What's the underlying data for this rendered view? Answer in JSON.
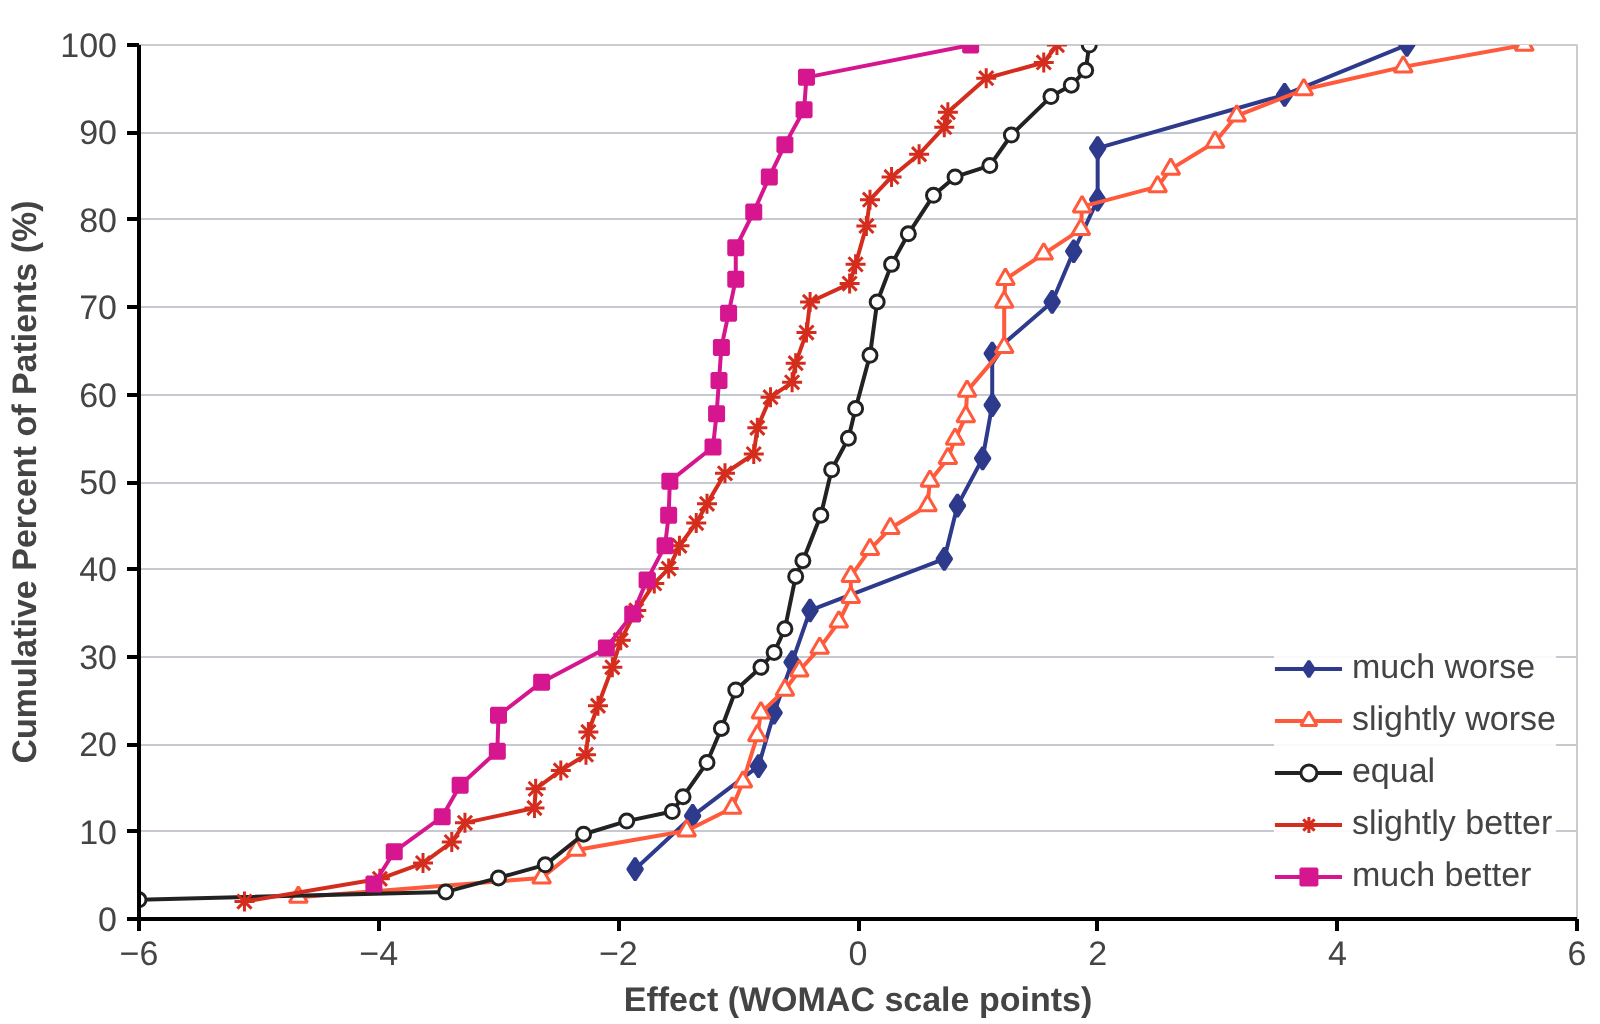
{
  "chart_data": {
    "type": "line",
    "xlabel": "Effect (WOMAC scale points)",
    "ylabel": "Cumulative Percent of Patients (%)",
    "xlim": [
      -6,
      6
    ],
    "xticks": [
      -6,
      -4,
      -2,
      0,
      2,
      4,
      6
    ],
    "ylim": [
      0,
      100
    ],
    "yticks": [
      0,
      10,
      20,
      30,
      40,
      50,
      60,
      70,
      80,
      90,
      100
    ],
    "grid": "y",
    "legend": "bottom right",
    "series": [
      {
        "name": "much worse",
        "color": "#2e3a8c",
        "marker": "diamond",
        "x": [
          -1.86,
          -1.38,
          -0.83,
          -0.7,
          -0.55,
          -0.4,
          0.72,
          0.83,
          1.04,
          1.12,
          1.12,
          1.62,
          1.8,
          2.0,
          2.0,
          3.56,
          4.58
        ],
        "values": [
          5.7,
          11.8,
          17.5,
          23.6,
          29.4,
          35.3,
          41.2,
          47.3,
          52.7,
          58.8,
          64.7,
          70.6,
          76.4,
          82.3,
          88.2,
          94.3,
          100
        ]
      },
      {
        "name": "slightly worse",
        "color": "#ff5a3c",
        "marker": "triangle",
        "x": [
          -4.67,
          -2.64,
          -2.35,
          -1.43,
          -1.05,
          -0.96,
          -0.84,
          -0.81,
          -0.61,
          -0.49,
          -0.32,
          -0.16,
          -0.06,
          -0.06,
          0.1,
          0.27,
          0.58,
          0.6,
          0.75,
          0.81,
          0.9,
          0.91,
          1.22,
          1.22,
          1.23,
          1.55,
          1.86,
          1.87,
          2.5,
          2.61,
          2.98,
          3.16,
          3.72,
          4.55,
          5.56
        ],
        "values": [
          2.5,
          4.7,
          7.9,
          10.1,
          12.7,
          15.7,
          21,
          23.6,
          26.2,
          28.4,
          31,
          34,
          36.8,
          39.2,
          42.3,
          44.7,
          47.3,
          50.1,
          52.7,
          54.9,
          57.5,
          60.4,
          65.4,
          70.6,
          73.2,
          76.1,
          78.9,
          81.5,
          83.8,
          85.8,
          88.9,
          91.9,
          94.9,
          97.5,
          100
        ]
      },
      {
        "name": "equal",
        "color": "#222222",
        "marker": "circle",
        "x": [
          -6,
          -3.44,
          -3.0,
          -2.61,
          -2.29,
          -1.93,
          -1.55,
          -1.46,
          -1.26,
          -1.14,
          -1.02,
          -0.81,
          -0.7,
          -0.61,
          -0.52,
          -0.46,
          -0.31,
          -0.22,
          -0.08,
          -0.02,
          0.1,
          0.16,
          0.28,
          0.42,
          0.63,
          0.81,
          1.1,
          1.28,
          1.61,
          1.78,
          1.9,
          1.93
        ],
        "values": [
          2.2,
          3.1,
          4.7,
          6.2,
          9.7,
          11.2,
          12.3,
          14,
          17.9,
          21.8,
          26.2,
          28.8,
          30.5,
          33.2,
          39.2,
          41,
          46.2,
          51.4,
          55,
          58.4,
          64.5,
          70.6,
          74.9,
          78.4,
          82.8,
          84.9,
          86.2,
          89.7,
          94.1,
          95.4,
          97.1,
          100
        ]
      },
      {
        "name": "slightly better",
        "color": "#d42d1e",
        "marker": "cross",
        "x": [
          -5.12,
          -3.99,
          -3.63,
          -3.39,
          -3.28,
          -2.7,
          -2.69,
          -2.48,
          -2.27,
          -2.25,
          -2.17,
          -2.05,
          -1.98,
          -1.85,
          -1.7,
          -1.58,
          -1.49,
          -1.35,
          -1.26,
          -1.11,
          -0.87,
          -0.84,
          -0.73,
          -0.55,
          -0.52,
          -0.43,
          -0.4,
          -0.07,
          -0.02,
          0.07,
          0.1,
          0.28,
          0.51,
          0.72,
          0.75,
          1.07,
          1.55,
          1.66
        ],
        "values": [
          2,
          4.6,
          6.4,
          8.8,
          11,
          12.7,
          14.9,
          17,
          18.8,
          21.4,
          24.4,
          28.8,
          31.9,
          35.3,
          38.4,
          40.1,
          42.7,
          45.3,
          47.5,
          51,
          53.2,
          56.2,
          59.7,
          61.4,
          63.6,
          67.1,
          70.6,
          72.7,
          74.9,
          79.3,
          82.3,
          84.9,
          87.5,
          90.6,
          92.3,
          96.2,
          98,
          100
        ]
      },
      {
        "name": "much better",
        "color": "#d6168f",
        "marker": "square",
        "x": [
          -4.04,
          -3.87,
          -3.47,
          -3.32,
          -3.01,
          -3.0,
          -2.64,
          -2.1,
          -1.88,
          -1.76,
          -1.61,
          -1.58,
          -1.57,
          -1.21,
          -1.18,
          -1.16,
          -1.14,
          -1.08,
          -1.02,
          -1.02,
          -0.87,
          -0.74,
          -0.61,
          -0.45,
          -0.43,
          0.94
        ],
        "values": [
          4,
          7.7,
          11.7,
          15.3,
          19.2,
          23.3,
          27.1,
          31,
          34.9,
          38.8,
          42.7,
          46.2,
          50.1,
          54,
          57.8,
          61.6,
          65.4,
          69.3,
          73.2,
          76.8,
          80.9,
          84.9,
          88.6,
          92.6,
          96.3,
          100
        ]
      }
    ]
  }
}
